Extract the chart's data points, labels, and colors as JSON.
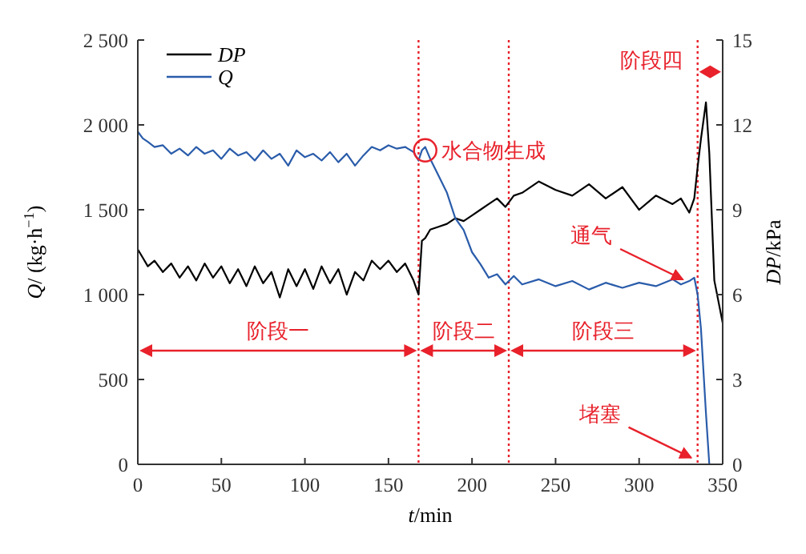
{
  "chart_data": {
    "type": "line",
    "xlabel": "t/min",
    "ylabel": "Q/ (kg·h$^{−1}$)",
    "y2label": "DP/kPa",
    "xlim": [
      0,
      350
    ],
    "xticks": [
      0,
      50,
      100,
      150,
      200,
      250,
      300,
      350
    ],
    "ylim": [
      0,
      2500
    ],
    "yticks": [
      0,
      500,
      {
        "value": 1000,
        "label": "1 000"
      },
      {
        "value": 1500,
        "label": "1 500"
      },
      {
        "value": 2000,
        "label": "2 000"
      },
      {
        "value": 2500,
        "label": "2 500"
      }
    ],
    "y2lim": [
      0,
      15
    ],
    "y2ticks": [
      0,
      3,
      6,
      9,
      12,
      15
    ],
    "grid": false,
    "legend": "top left",
    "marker": "none",
    "line_style": "solid",
    "series": [
      {
        "name": "DP",
        "color": "#000000",
        "axis": "y2",
        "x": [
          0,
          3,
          6,
          10,
          15,
          20,
          25,
          30,
          35,
          40,
          45,
          50,
          55,
          60,
          65,
          70,
          75,
          80,
          85,
          90,
          95,
          100,
          105,
          110,
          115,
          120,
          125,
          130,
          135,
          140,
          145,
          150,
          155,
          160,
          165,
          168,
          170,
          172,
          175,
          180,
          185,
          190,
          195,
          200,
          205,
          210,
          215,
          220,
          225,
          230,
          240,
          250,
          260,
          270,
          280,
          290,
          300,
          310,
          320,
          325,
          330,
          333,
          335,
          337,
          340,
          342,
          345,
          350
        ],
        "values": [
          7.6,
          7.3,
          7.0,
          7.2,
          6.8,
          7.1,
          6.6,
          7.0,
          6.5,
          7.1,
          6.6,
          7.0,
          6.4,
          6.9,
          6.3,
          7.0,
          6.4,
          6.8,
          5.9,
          6.9,
          6.3,
          6.9,
          6.2,
          7.0,
          6.4,
          6.9,
          6.0,
          6.8,
          6.5,
          7.2,
          6.9,
          7.2,
          6.8,
          7.1,
          6.5,
          6.0,
          7.9,
          8.0,
          8.3,
          8.4,
          8.5,
          8.7,
          8.6,
          8.8,
          9.0,
          9.2,
          9.4,
          9.1,
          9.5,
          9.6,
          10.0,
          9.7,
          9.5,
          9.9,
          9.4,
          9.8,
          9.0,
          9.5,
          9.2,
          9.4,
          8.9,
          9.4,
          10.5,
          11.5,
          12.8,
          11.0,
          6.5,
          5.0
        ]
      },
      {
        "name": "Q",
        "color": "#2a5caa",
        "x": [
          0,
          3,
          6,
          10,
          15,
          20,
          25,
          30,
          35,
          40,
          45,
          50,
          55,
          60,
          65,
          70,
          75,
          80,
          85,
          90,
          95,
          100,
          105,
          110,
          115,
          120,
          125,
          130,
          135,
          140,
          145,
          150,
          155,
          160,
          165,
          168,
          170,
          172,
          175,
          180,
          185,
          190,
          195,
          200,
          205,
          210,
          215,
          220,
          225,
          230,
          240,
          250,
          260,
          270,
          280,
          290,
          300,
          310,
          320,
          325,
          330,
          333,
          335,
          337,
          340,
          342,
          345,
          350
        ],
        "values": [
          1960,
          1920,
          1900,
          1870,
          1880,
          1830,
          1860,
          1820,
          1870,
          1830,
          1850,
          1800,
          1860,
          1820,
          1840,
          1790,
          1850,
          1800,
          1830,
          1760,
          1850,
          1810,
          1830,
          1790,
          1840,
          1780,
          1830,
          1760,
          1820,
          1870,
          1850,
          1880,
          1860,
          1870,
          1840,
          1790,
          1850,
          1870,
          1800,
          1700,
          1600,
          1450,
          1380,
          1250,
          1180,
          1100,
          1120,
          1060,
          1110,
          1060,
          1090,
          1050,
          1080,
          1030,
          1070,
          1040,
          1070,
          1050,
          1090,
          1060,
          1080,
          1100,
          1000,
          800,
          300,
          0,
          0,
          0
        ]
      }
    ],
    "ref_lines": [
      {
        "axis": "x",
        "value": 168,
        "color": "#e8212b",
        "line_style": "dotted"
      },
      {
        "axis": "x",
        "value": 222,
        "color": "#e8212b",
        "line_style": "dotted"
      },
      {
        "axis": "x",
        "value": 335,
        "color": "#e8212b",
        "line_style": "dotted"
      }
    ],
    "annotations": [
      "阶段一",
      "阶段二",
      "阶段三",
      "阶段四",
      {
        "text": "水合物生成",
        "x": 172,
        "y": 1850
      },
      {
        "text": "通气",
        "x": 328,
        "y": 1080
      },
      {
        "text": "堵塞",
        "x": 333,
        "y": 30
      }
    ]
  }
}
